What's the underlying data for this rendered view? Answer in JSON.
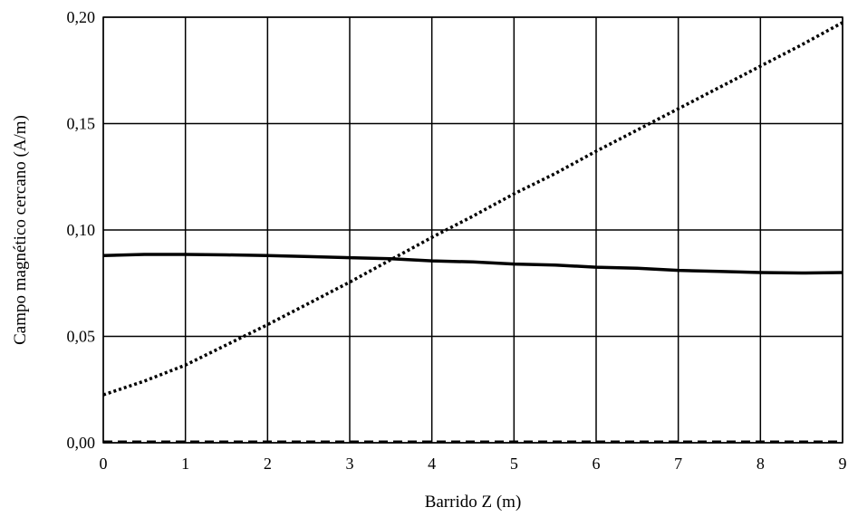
{
  "chart_data": {
    "type": "line",
    "xlabel": "Barrido Z (m)",
    "ylabel": "Campo magnético cercano (A/m)",
    "xlim": [
      0,
      9
    ],
    "ylim": [
      0,
      0.2
    ],
    "x_ticks": [
      0,
      1,
      2,
      3,
      4,
      5,
      6,
      7,
      8,
      9
    ],
    "x_tick_labels": [
      "0",
      "1",
      "2",
      "3",
      "4",
      "5",
      "6",
      "7",
      "8",
      "9"
    ],
    "y_ticks": [
      0,
      0.05,
      0.1,
      0.15,
      0.2
    ],
    "y_tick_labels": [
      "0,00",
      "0,05",
      "0,10",
      "0,15",
      "0,20"
    ],
    "grid": true,
    "legend": "none",
    "series": [
      {
        "style": "solid",
        "color": "#000000",
        "x": [
          0,
          0.5,
          1,
          1.5,
          2,
          2.5,
          3,
          3.5,
          4,
          4.5,
          5,
          5.5,
          6,
          6.5,
          7,
          7.5,
          8,
          8.5,
          9
        ],
        "y": [
          0.088,
          0.0885,
          0.0885,
          0.0883,
          0.088,
          0.0875,
          0.087,
          0.0865,
          0.0855,
          0.085,
          0.084,
          0.0835,
          0.0825,
          0.082,
          0.081,
          0.0805,
          0.08,
          0.0798,
          0.08
        ]
      },
      {
        "style": "dotted",
        "color": "#000000",
        "x": [
          0,
          0.5,
          1,
          1.5,
          2,
          2.5,
          3,
          3.5,
          4,
          4.5,
          5,
          5.5,
          6,
          6.5,
          7,
          7.5,
          8,
          8.5,
          9
        ],
        "y": [
          0.0225,
          0.029,
          0.0365,
          0.046,
          0.0555,
          0.0655,
          0.0755,
          0.086,
          0.0965,
          0.1065,
          0.117,
          0.1265,
          0.137,
          0.147,
          0.157,
          0.167,
          0.177,
          0.187,
          0.1975
        ]
      },
      {
        "style": "dashed",
        "color": "#000000",
        "x": [
          0,
          9
        ],
        "y": [
          0.0005,
          0.0005
        ]
      }
    ]
  }
}
